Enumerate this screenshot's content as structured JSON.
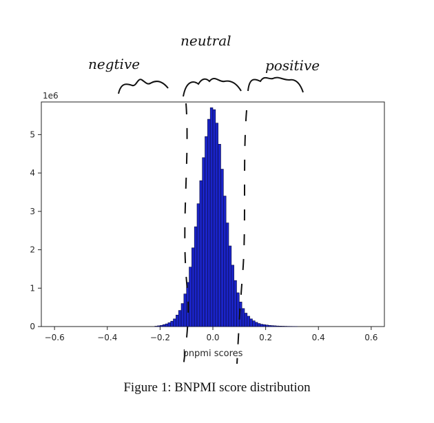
{
  "chart_data": {
    "type": "bar",
    "xlabel": "bnpmi scores",
    "ylabel": "",
    "y_scale_label": "1e6",
    "xlim": [
      -0.65,
      0.65
    ],
    "ylim": [
      0,
      5.85
    ],
    "x_ticks": [
      -0.6,
      -0.4,
      -0.2,
      0.0,
      0.2,
      0.4,
      0.6
    ],
    "x_tick_labels": [
      "−0.6",
      "−0.4",
      "−0.2",
      "0.0",
      "0.2",
      "0.4",
      "0.6"
    ],
    "y_ticks": [
      0,
      1,
      2,
      3,
      4,
      5
    ],
    "y_tick_labels": [
      "0",
      "1",
      "2",
      "3",
      "4",
      "5"
    ],
    "bin_width": 0.01,
    "bin_starts": [
      -0.22,
      -0.21,
      -0.2,
      -0.19,
      -0.18,
      -0.17,
      -0.16,
      -0.15,
      -0.14,
      -0.13,
      -0.12,
      -0.11,
      -0.1,
      -0.09,
      -0.08,
      -0.07,
      -0.06,
      -0.05,
      -0.04,
      -0.03,
      -0.02,
      -0.01,
      0.0,
      0.01,
      0.02,
      0.03,
      0.04,
      0.05,
      0.06,
      0.07,
      0.08,
      0.09,
      0.1,
      0.11,
      0.12,
      0.13,
      0.14,
      0.15,
      0.16,
      0.17,
      0.18,
      0.19,
      0.2,
      0.21,
      0.22,
      0.23,
      0.24,
      0.25,
      0.26,
      0.27,
      0.28,
      0.29,
      0.3,
      0.31
    ],
    "values": [
      0.01,
      0.02,
      0.03,
      0.05,
      0.07,
      0.1,
      0.14,
      0.2,
      0.3,
      0.42,
      0.6,
      0.85,
      1.15,
      1.55,
      2.05,
      2.6,
      3.2,
      3.8,
      4.4,
      4.95,
      5.4,
      5.7,
      5.65,
      5.3,
      4.75,
      4.1,
      3.4,
      2.7,
      2.1,
      1.6,
      1.2,
      0.88,
      0.64,
      0.47,
      0.35,
      0.27,
      0.2,
      0.15,
      0.11,
      0.08,
      0.06,
      0.05,
      0.04,
      0.03,
      0.025,
      0.02,
      0.015,
      0.012,
      0.01,
      0.008,
      0.006,
      0.005,
      0.004,
      0.003
    ],
    "bar_color": "#1a24c8",
    "bar_edge_color": "#0a0a3a",
    "grid": false
  },
  "annotations": {
    "negative": "negtive",
    "neutral": "neutral",
    "positive": "positive"
  },
  "caption": "Figure 1: BNPMI score distribution"
}
